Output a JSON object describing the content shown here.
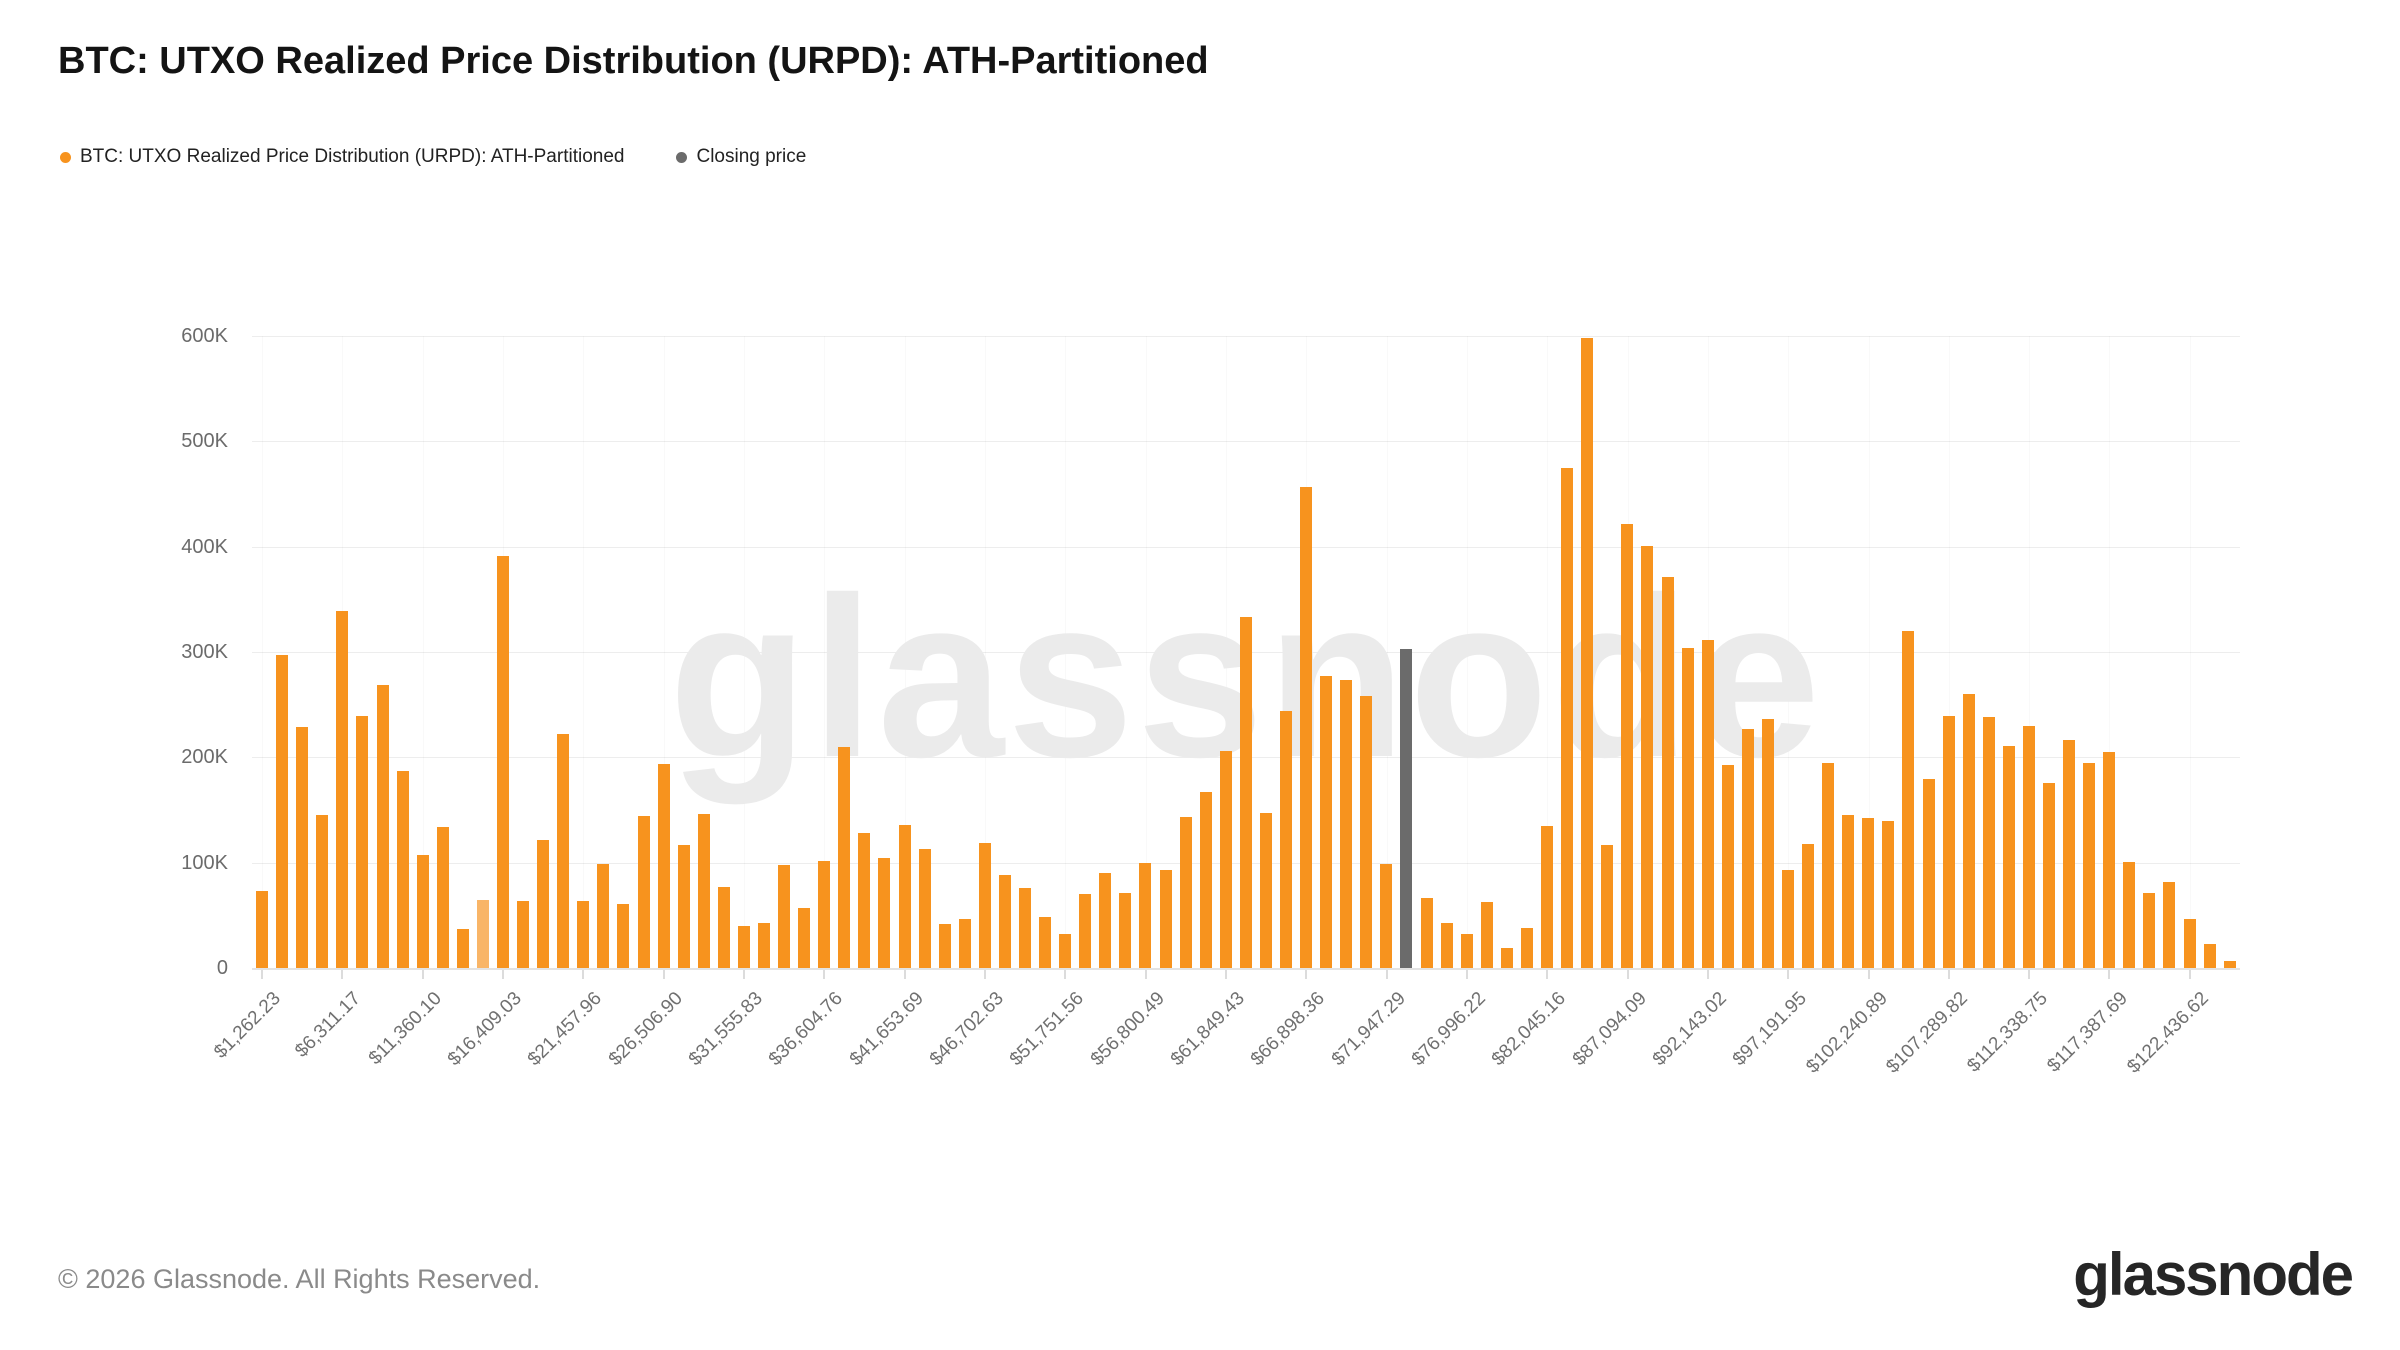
{
  "title": "BTC: UTXO Realized Price Distribution (URPD): ATH-Partitioned",
  "legend": {
    "series": {
      "label": "BTC: UTXO Realized Price Distribution (URPD): ATH-Partitioned",
      "color": "#F7931E"
    },
    "closing": {
      "label": "Closing price",
      "color": "#6B6B6B"
    }
  },
  "watermark": "glassnode",
  "footer": {
    "copyright": "© 2026 Glassnode. All Rights Reserved.",
    "logo": "glassnode"
  },
  "colors": {
    "bar_orange": "#F7931E",
    "bar_highlight": "#F9B567",
    "bar_closing": "#6B6B6B",
    "gridline": "#ededed",
    "axis_text": "#6b6b6b",
    "background": "#ffffff"
  },
  "chart_data": {
    "type": "bar",
    "title": "BTC: UTXO Realized Price Distribution (URPD): ATH-Partitioned",
    "unit": "BTC",
    "ylim": [
      0,
      600000
    ],
    "ytick_labels": [
      "0",
      "100K",
      "200K",
      "300K",
      "400K",
      "500K",
      "600K"
    ],
    "grid": "horizontal",
    "legend_position": "top-left",
    "bin_width_usd": 1262.23,
    "labels_every_n_bins": 4,
    "x_tick_labels": [
      "$1,262.23",
      "$6,311.17",
      "$11,360.10",
      "$16,409.03",
      "$21,457.96",
      "$26,506.90",
      "$31,555.83",
      "$36,604.76",
      "$41,653.69",
      "$46,702.63",
      "$51,751.56",
      "$56,800.49",
      "$61,849.43",
      "$66,898.36",
      "$71,947.29",
      "$76,996.22",
      "$82,045.16",
      "$87,094.09",
      "$92,143.02",
      "$97,191.95",
      "$102,240.89",
      "$107,289.82",
      "$112,338.75",
      "$117,387.69",
      "$122,436.62"
    ],
    "values": [
      73000,
      297000,
      229000,
      145000,
      339000,
      239000,
      269000,
      187000,
      107000,
      134000,
      37000,
      65000,
      391000,
      64000,
      122000,
      222000,
      64000,
      99000,
      61000,
      144000,
      194000,
      117000,
      146000,
      77000,
      40000,
      43000,
      98000,
      57000,
      102000,
      210000,
      128000,
      104000,
      136000,
      113000,
      42000,
      47000,
      119000,
      88000,
      76000,
      48000,
      32000,
      70000,
      90000,
      71000,
      100000,
      93000,
      143000,
      167000,
      206000,
      333000,
      147000,
      244000,
      457000,
      277000,
      273000,
      258000,
      99000,
      303000,
      66000,
      43000,
      32000,
      63000,
      19000,
      38000,
      135000,
      475000,
      598000,
      117000,
      422000,
      401000,
      371000,
      304000,
      311000,
      193000,
      227000,
      236000,
      93000,
      118000,
      195000,
      145000,
      142000,
      140000,
      320000,
      179000,
      239000,
      260000,
      238000,
      211000,
      230000,
      176000,
      216000,
      195000,
      205000,
      101000,
      71000,
      82000,
      47000,
      23000,
      7000
    ],
    "closing_price_bar": {
      "index": 57,
      "value": 303000,
      "color": "#6B6B6B"
    },
    "highlighted_bar": {
      "index": 11,
      "value": 65000,
      "color": "#F9B567"
    }
  }
}
